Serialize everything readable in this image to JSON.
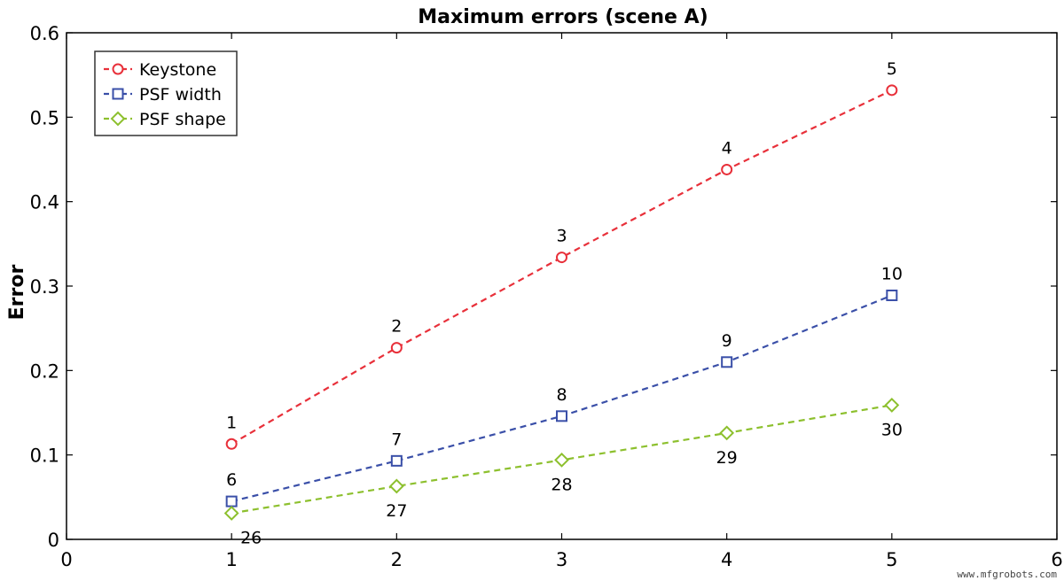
{
  "chart_data": {
    "type": "line",
    "title": "Maximum errors (scene A)",
    "xlabel": "",
    "ylabel": "Error",
    "xlim": [
      0,
      6
    ],
    "ylim": [
      0,
      0.6
    ],
    "x_ticks": [
      "0",
      "1",
      "2",
      "3",
      "4",
      "5",
      "6"
    ],
    "y_ticks": [
      "0",
      "0.1",
      "0.2",
      "0.3",
      "0.4",
      "0.5",
      "0.6"
    ],
    "grid": false,
    "legend_position": "top-left",
    "x": [
      1,
      2,
      3,
      4,
      5
    ],
    "series": [
      {
        "name": "Keystone",
        "color": "#e8303a",
        "marker": "circle",
        "line_style": "dashed",
        "values": [
          0.113,
          0.227,
          0.334,
          0.438,
          0.532
        ],
        "point_labels": [
          "1",
          "2",
          "3",
          "4",
          "5"
        ],
        "label_position": "above"
      },
      {
        "name": "PSF width",
        "color": "#3a4fa8",
        "marker": "square",
        "line_style": "dashed",
        "values": [
          0.045,
          0.093,
          0.146,
          0.21,
          0.289
        ],
        "point_labels": [
          "6",
          "7",
          "8",
          "9",
          "10"
        ],
        "label_position": "above"
      },
      {
        "name": "PSF shape",
        "color": "#8dc02e",
        "marker": "diamond",
        "line_style": "dashed",
        "values": [
          0.031,
          0.063,
          0.094,
          0.126,
          0.159
        ],
        "point_labels": [
          "26",
          "27",
          "28",
          "29",
          "30"
        ],
        "label_position": "below"
      }
    ]
  },
  "watermark": "www.mfgrobots.com"
}
